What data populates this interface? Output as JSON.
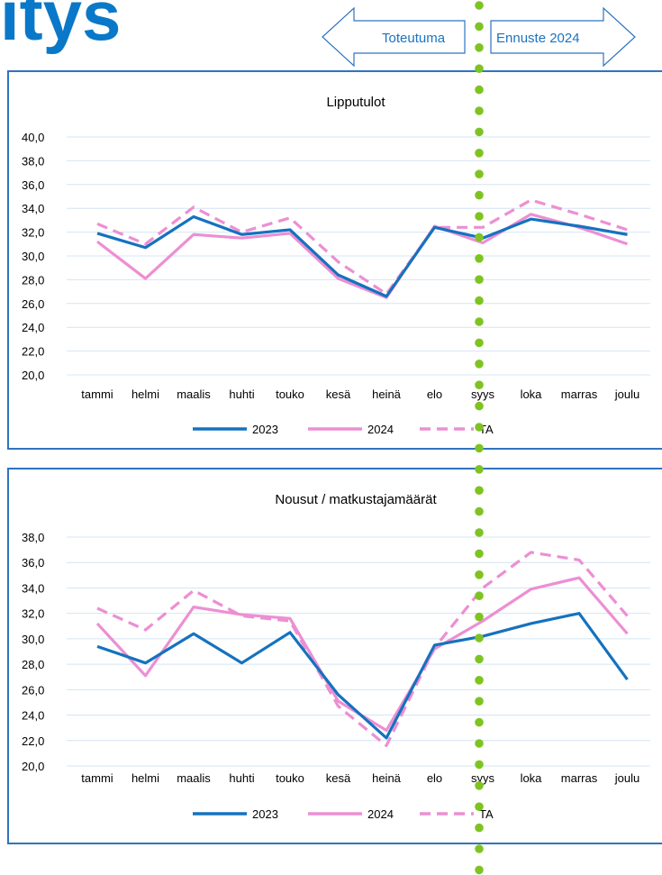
{
  "header": {
    "partial_title": "itys",
    "arrow_left_label": "Toteutuma",
    "arrow_right_label": "Ennuste 2024"
  },
  "colors": {
    "title_blue": "#0a78c8",
    "series_2023": "#1572be",
    "series_2024": "#ec8fd3",
    "series_ta": "#ec8fd3",
    "divider_dots": "#7fc322",
    "panel_border": "#2f73c0",
    "grid": "#d4e4f4"
  },
  "chart_data": [
    {
      "type": "line",
      "title": "Lipputulot",
      "categories": [
        "tammi",
        "helmi",
        "maalis",
        "huhti",
        "touko",
        "kesä",
        "heinä",
        "elo",
        "syys",
        "loka",
        "marras",
        "joulu"
      ],
      "ylim": [
        20,
        40
      ],
      "yticks": [
        "40,0",
        "38,0",
        "36,0",
        "34,0",
        "32,0",
        "30,0",
        "28,0",
        "26,0",
        "24,0",
        "22,0",
        "20,0"
      ],
      "grid": true,
      "legend_position": "bottom",
      "series": [
        {
          "name": "2023",
          "style": "solid",
          "values": [
            31.9,
            30.7,
            33.3,
            31.8,
            32.2,
            28.4,
            26.6,
            32.4,
            31.5,
            33.1,
            32.5,
            31.8
          ]
        },
        {
          "name": "2024",
          "style": "solid",
          "values": [
            31.2,
            28.1,
            31.8,
            31.5,
            31.9,
            28.1,
            26.5,
            32.5,
            31.1,
            33.5,
            32.4,
            31.0
          ]
        },
        {
          "name": "TA",
          "style": "dashed",
          "values": [
            32.7,
            31.0,
            34.1,
            32.0,
            33.2,
            29.5,
            26.8,
            32.4,
            32.4,
            34.7,
            33.5,
            32.2
          ]
        }
      ]
    },
    {
      "type": "line",
      "title": "Nousut / matkustajamäärät",
      "categories": [
        "tammi",
        "helmi",
        "maalis",
        "huhti",
        "touko",
        "kesä",
        "heinä",
        "elo",
        "syys",
        "loka",
        "marras",
        "joulu"
      ],
      "ylim": [
        20,
        38
      ],
      "yticks": [
        "38,0",
        "36,0",
        "34,0",
        "32,0",
        "30,0",
        "28,0",
        "26,0",
        "24,0",
        "22,0",
        "20,0"
      ],
      "grid": true,
      "legend_position": "bottom",
      "series": [
        {
          "name": "2023",
          "style": "solid",
          "values": [
            29.4,
            28.1,
            30.4,
            28.1,
            30.5,
            25.6,
            22.2,
            29.5,
            30.2,
            31.2,
            32.0,
            26.8
          ]
        },
        {
          "name": "2024",
          "style": "solid",
          "values": [
            31.2,
            27.1,
            32.5,
            31.9,
            31.6,
            25.1,
            22.8,
            29.2,
            31.4,
            33.9,
            34.8,
            30.4
          ]
        },
        {
          "name": "TA",
          "style": "dashed",
          "values": [
            32.4,
            30.7,
            33.8,
            31.8,
            31.4,
            24.7,
            21.6,
            29.3,
            34.0,
            36.8,
            36.2,
            31.8
          ]
        }
      ]
    }
  ]
}
